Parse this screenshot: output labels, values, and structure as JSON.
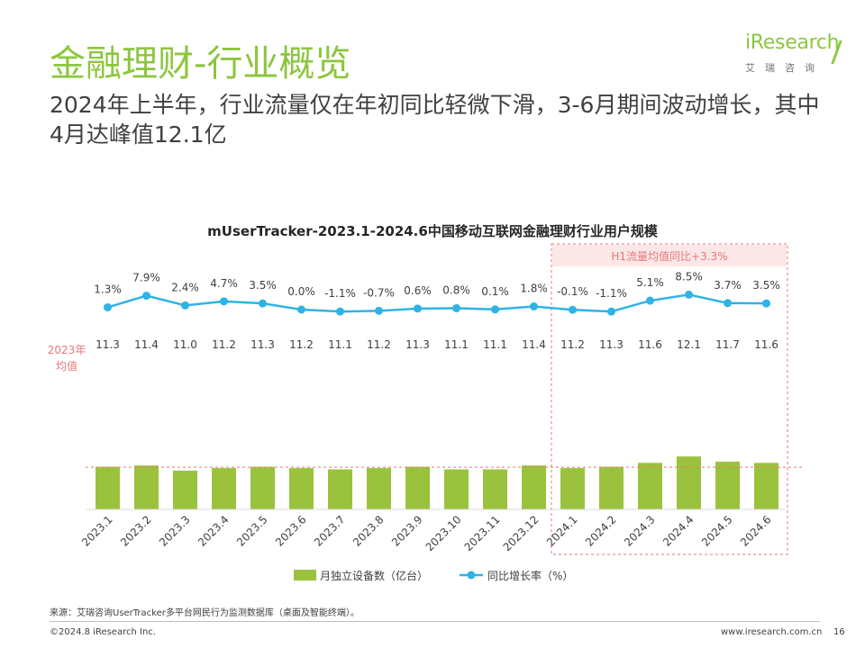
{
  "slide": {
    "title": "金融理财-行业概览",
    "subtitle": "2024年上半年，行业流量仅在年初同比轻微下滑，3-6月期间波动增长，其中4月达峰值12.1亿",
    "logo_word": "iResearch",
    "logo_cn": "艾瑞咨询",
    "source": "来源：艾瑞咨询UserTracker多平台网民行为监测数据库（桌面及智能终端）。",
    "footer_left": "©2024.8 iResearch Inc.",
    "footer_url": "www.iresearch.com.cn",
    "page_number": "16"
  },
  "colors": {
    "accent_green": "#8cc63f",
    "bar_green": "#9bc23c",
    "line_blue": "#2fb3e6",
    "highlight_red": "#e87777",
    "text_dark": "#404040"
  },
  "chart_data": {
    "type": "bar",
    "title": "mUserTracker-2023.1-2024.6中国移动互联网金融理财行业用户规模",
    "categories": [
      "2023.1",
      "2023.2",
      "2023.3",
      "2023.4",
      "2023.5",
      "2023.6",
      "2023.7",
      "2023.8",
      "2023.9",
      "2023.10",
      "2023.11",
      "2023.12",
      "2024.1",
      "2024.2",
      "2024.3",
      "2024.4",
      "2024.5",
      "2024.6"
    ],
    "series": [
      {
        "name": "月独立设备数（亿台）",
        "type": "bar",
        "values": [
          11.3,
          11.4,
          11.0,
          11.2,
          11.3,
          11.2,
          11.1,
          11.2,
          11.3,
          11.1,
          11.1,
          11.4,
          11.2,
          11.3,
          11.6,
          12.1,
          11.7,
          11.6
        ],
        "labels": [
          "11.3",
          "11.4",
          "11.0",
          "11.2",
          "11.3",
          "11.2",
          "11.1",
          "11.2",
          "11.3",
          "11.1",
          "11.1",
          "11.4",
          "11.2",
          "11.3",
          "11.6",
          "12.1",
          "11.7",
          "11.6"
        ]
      },
      {
        "name": "同比增长率（%）",
        "type": "line",
        "values": [
          1.3,
          7.9,
          2.4,
          4.7,
          3.5,
          0.0,
          -1.1,
          -0.7,
          0.6,
          0.8,
          0.1,
          1.8,
          -0.1,
          -1.1,
          5.1,
          8.5,
          3.7,
          3.5
        ],
        "labels": [
          "1.3%",
          "7.9%",
          "2.4%",
          "4.7%",
          "3.5%",
          "0.0%",
          "-1.1%",
          "-0.7%",
          "0.6%",
          "0.8%",
          "0.1%",
          "1.8%",
          "-0.1%",
          "-1.1%",
          "5.1%",
          "8.5%",
          "3.7%",
          "3.5%"
        ]
      }
    ],
    "reference_line": {
      "label_line1": "2023年",
      "label_line2": "均值",
      "value": 11.2
    },
    "highlight": {
      "label": "H1流量均值同比+3.3%",
      "start_category": "2024.1",
      "end_category": "2024.6"
    },
    "legend_position": "bottom",
    "grid": false
  }
}
